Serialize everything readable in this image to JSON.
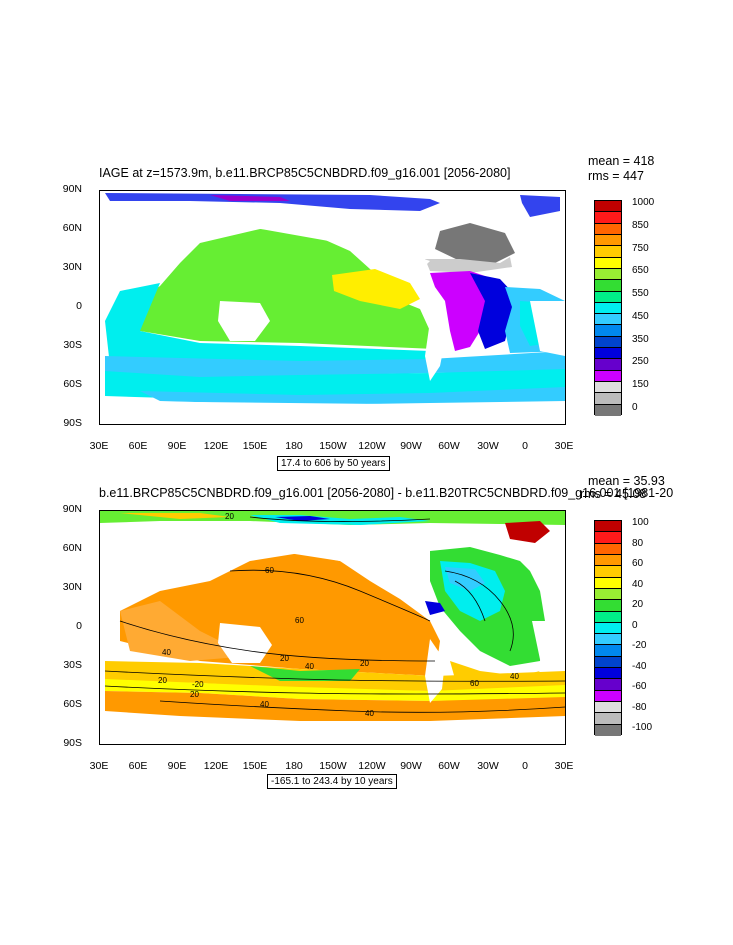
{
  "panel1": {
    "title": "IAGE at z=1573.9m, b.e11.BRCP85C5CNBDRD.f09_g16.001 [2056-2080]",
    "mean": "mean = 418",
    "rms": "rms = 447",
    "info": "17.4 to 606 by 50 years",
    "colorbar_labels": [
      "1000",
      "850",
      "750",
      "650",
      "550",
      "450",
      "350",
      "250",
      "150",
      "0"
    ],
    "colorbar_colors": [
      "#c00000",
      "#ff1a1a",
      "#ff6600",
      "#ff9900",
      "#ffcc00",
      "#ffff00",
      "#99ee33",
      "#33dd33",
      "#00ee88",
      "#00eeee",
      "#33ccff",
      "#0088ee",
      "#0044cc",
      "#0000dd",
      "#6600cc",
      "#cc00ff",
      "#dddddd",
      "#bbbbbb",
      "#777777"
    ]
  },
  "panel2": {
    "title": "b.e11.BRCP85C5CNBDRD.f09_g16.001 [2056-2080] - b.e11.B20TRC5CNBDRD.f09_g16.001 [1981-20",
    "mean": "mean = 35.93",
    "rms": "rms = 45.08",
    "info": "-165.1 to 243.4 by 10 years",
    "colorbar_labels": [
      "100",
      "80",
      "60",
      "40",
      "20",
      "0",
      "-20",
      "-40",
      "-60",
      "-80",
      "-100"
    ],
    "colorbar_colors": [
      "#c00000",
      "#ff1a1a",
      "#ff6600",
      "#ff9900",
      "#ffcc00",
      "#ffff00",
      "#99ee33",
      "#33dd33",
      "#00ee88",
      "#00eeee",
      "#33ccff",
      "#0088ee",
      "#0044cc",
      "#0000dd",
      "#6600cc",
      "#cc00ff",
      "#dddddd",
      "#bbbbbb",
      "#777777"
    ],
    "contour_labels": [
      "20",
      "60",
      "60",
      "40",
      "40",
      "20",
      "20",
      "40",
      "20",
      "40",
      "60",
      "20",
      "40",
      "-20"
    ]
  },
  "axes": {
    "lat_labels": [
      "90N",
      "60N",
      "30N",
      "0",
      "30S",
      "60S",
      "90S"
    ],
    "lon_labels": [
      "30E",
      "60E",
      "90E",
      "120E",
      "150E",
      "180",
      "150W",
      "120W",
      "90W",
      "60W",
      "30W",
      "0",
      "30E"
    ]
  }
}
